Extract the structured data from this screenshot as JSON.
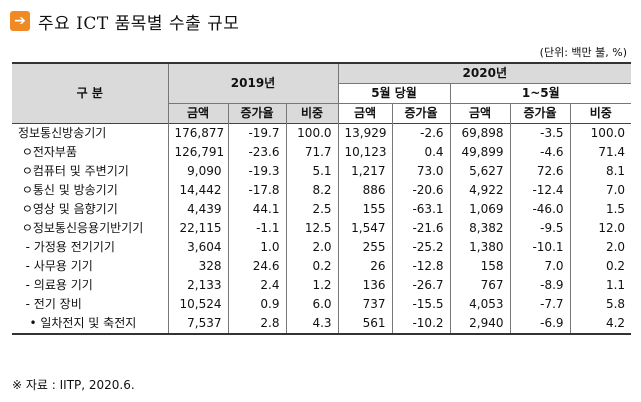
{
  "title": {
    "text": "주요 ICT 품목별 수출 규모",
    "icon": "arrow-right-icon",
    "icon_color": "#f08a24"
  },
  "unit": "(단위: 백만 불, %)",
  "header": {
    "category": "구 분",
    "year1": "2019년",
    "year2": "2020년",
    "sub_may": "5월 당월",
    "sub_jan_may": "1~5월",
    "col_amount": "금액",
    "col_growth": "증가율",
    "col_share": "비중"
  },
  "rows": [
    {
      "label": "정보통신방송기기",
      "v": [
        "176,877",
        "-19.7",
        "100.0",
        "13,929",
        "-2.6",
        "69,898",
        "-3.5",
        "100.0"
      ]
    },
    {
      "label": " ㅇ전자부품",
      "v": [
        "126,791",
        "-23.6",
        "71.7",
        "10,123",
        "0.4",
        "49,899",
        "-4.6",
        "71.4"
      ]
    },
    {
      "label": " ㅇ컴퓨터 및 주변기기",
      "v": [
        "9,090",
        "-19.3",
        "5.1",
        "1,217",
        "73.0",
        "5,627",
        "72.6",
        "8.1"
      ]
    },
    {
      "label": " ㅇ통신 및 방송기기",
      "v": [
        "14,442",
        "-17.8",
        "8.2",
        "886",
        "-20.6",
        "4,922",
        "-12.4",
        "7.0"
      ]
    },
    {
      "label": " ㅇ영상 및 음향기기",
      "v": [
        "4,439",
        "44.1",
        "2.5",
        "155",
        "-63.1",
        "1,069",
        "-46.0",
        "1.5"
      ]
    },
    {
      "label": " ㅇ정보통신응용기반기기",
      "v": [
        "22,115",
        "-1.1",
        "12.5",
        "1,547",
        "-21.6",
        "8,382",
        "-9.5",
        "12.0"
      ]
    },
    {
      "label": "  - 가정용 전기기기",
      "v": [
        "3,604",
        "1.0",
        "2.0",
        "255",
        "-25.2",
        "1,380",
        "-10.1",
        "2.0"
      ]
    },
    {
      "label": "  - 사무용 기기",
      "v": [
        "328",
        "24.6",
        "0.2",
        "26",
        "-12.8",
        "158",
        "7.0",
        "0.2"
      ]
    },
    {
      "label": "  - 의료용 기기",
      "v": [
        "2,133",
        "2.4",
        "1.2",
        "136",
        "-26.7",
        "767",
        "-8.9",
        "1.1"
      ]
    },
    {
      "label": "  - 전기 장비",
      "v": [
        "10,524",
        "0.9",
        "6.0",
        "737",
        "-15.5",
        "4,053",
        "-7.7",
        "5.8"
      ]
    },
    {
      "label": "   • 일차전지 및 축전지",
      "v": [
        "7,537",
        "2.8",
        "4.3",
        "561",
        "-10.2",
        "2,940",
        "-6.9",
        "4.2"
      ]
    }
  ],
  "source": "※ 자료 : IITP, 2020.6."
}
